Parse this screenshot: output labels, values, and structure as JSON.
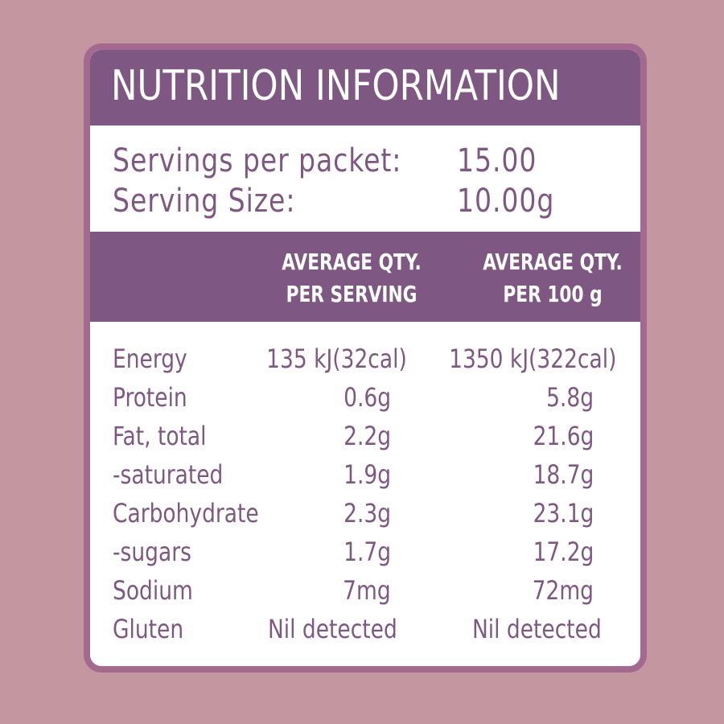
{
  "title": "NUTRITION INFORMATION",
  "servings": [
    {
      "label": "Servings per packet:",
      "value": "15.00"
    },
    {
      "label": "Serving Size:",
      "value": "10.00g"
    }
  ],
  "columns": {
    "per_serving": {
      "line1": "AVERAGE QTY.",
      "line2": "PER SERVING"
    },
    "per_100g": {
      "line1": "AVERAGE QTY.",
      "line2": "PER 100 g"
    }
  },
  "rows": [
    {
      "name": "Energy",
      "per_serving": "135 kJ(32cal)",
      "per_100g": "1350 kJ(322cal)"
    },
    {
      "name": "Protein",
      "per_serving": "0.6g",
      "per_100g": "5.8g"
    },
    {
      "name": "Fat, total",
      "per_serving": "2.2g",
      "per_100g": "21.6g"
    },
    {
      "name": "-saturated",
      "per_serving": "1.9g",
      "per_100g": "18.7g"
    },
    {
      "name": "Carbohydrate",
      "per_serving": "2.3g",
      "per_100g": "23.1g"
    },
    {
      "name": "-sugars",
      "per_serving": "1.7g",
      "per_100g": "17.2g"
    },
    {
      "name": "Sodium",
      "per_serving": "7mg",
      "per_100g": "72mg"
    },
    {
      "name": "Gluten",
      "per_serving": "Nil detected",
      "per_100g": "Nil detected"
    }
  ],
  "colors": {
    "background": "#c4969f",
    "border": "#a4698f",
    "header": "#7e5883",
    "text": "#7e5883",
    "panel": "#ffffff"
  }
}
